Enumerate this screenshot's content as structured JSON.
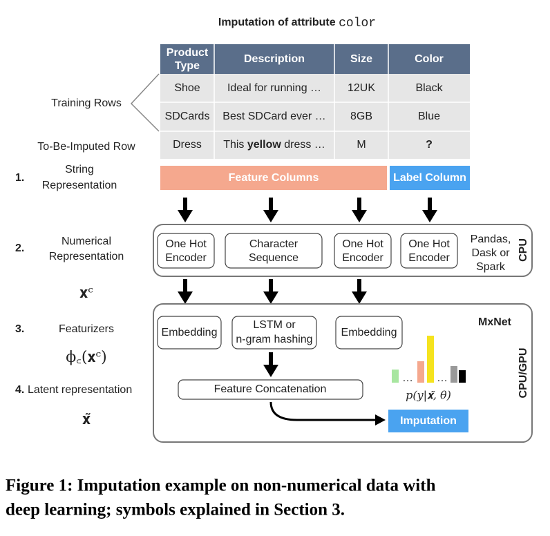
{
  "title": {
    "text": "Imputation of attribute",
    "code": "color"
  },
  "table": {
    "header": [
      [
        "Product",
        "Type"
      ],
      "Description",
      "Size",
      "Color"
    ],
    "rows": [
      [
        "Shoe",
        "Ideal for running …",
        "12UK",
        "Black"
      ],
      [
        "SDCards",
        "Best SDCard ever …",
        "8GB",
        "Blue"
      ],
      [
        "Dress",
        {
          "before": "This",
          "bold": "yellow",
          "after": "dress …"
        },
        "M",
        "?"
      ]
    ]
  },
  "row_labels": {
    "training": "Training Rows",
    "imputed": "To-Be-Imputed Row"
  },
  "steps": [
    {
      "number": "1.",
      "label": [
        "String",
        "Representation"
      ]
    },
    {
      "number": "2.",
      "label": [
        "Numerical",
        "Representation"
      ]
    },
    {
      "number": "3.",
      "label": [
        "Featurizers"
      ]
    },
    {
      "number": "4.",
      "label": [
        "Latent representation"
      ]
    }
  ],
  "symbols": {
    "xc": "𝐱ᶜ",
    "phi": "ϕ꜀(𝐱ᶜ)",
    "xtilde": "𝐱̃",
    "p": "p(y|𝐱̃, θ)"
  },
  "columns": {
    "feature": "Feature Columns",
    "label": "Label Column"
  },
  "cpu": {
    "encoders": [
      [
        "One Hot",
        "Encoder"
      ],
      [
        "Character",
        "Sequence"
      ],
      [
        "One Hot",
        "Encoder"
      ],
      [
        "One Hot",
        "Encoder"
      ]
    ],
    "frameworks": [
      "Pandas,",
      "Dask or",
      "Spark"
    ],
    "label": "CPU"
  },
  "gpu": {
    "featurizers": [
      [
        "Embedding"
      ],
      [
        "LSTM or",
        "n-gram hashing"
      ],
      [
        "Embedding"
      ]
    ],
    "framework": "MxNet",
    "concatenation": "Feature Concatenation",
    "dots": [
      "…",
      "…"
    ],
    "output": "Imputation",
    "label": "CPU/GPU"
  },
  "caption": [
    "Figure 1: Imputation example on non-numerical data with",
    "deep learning; symbols explained in Section 3."
  ]
}
